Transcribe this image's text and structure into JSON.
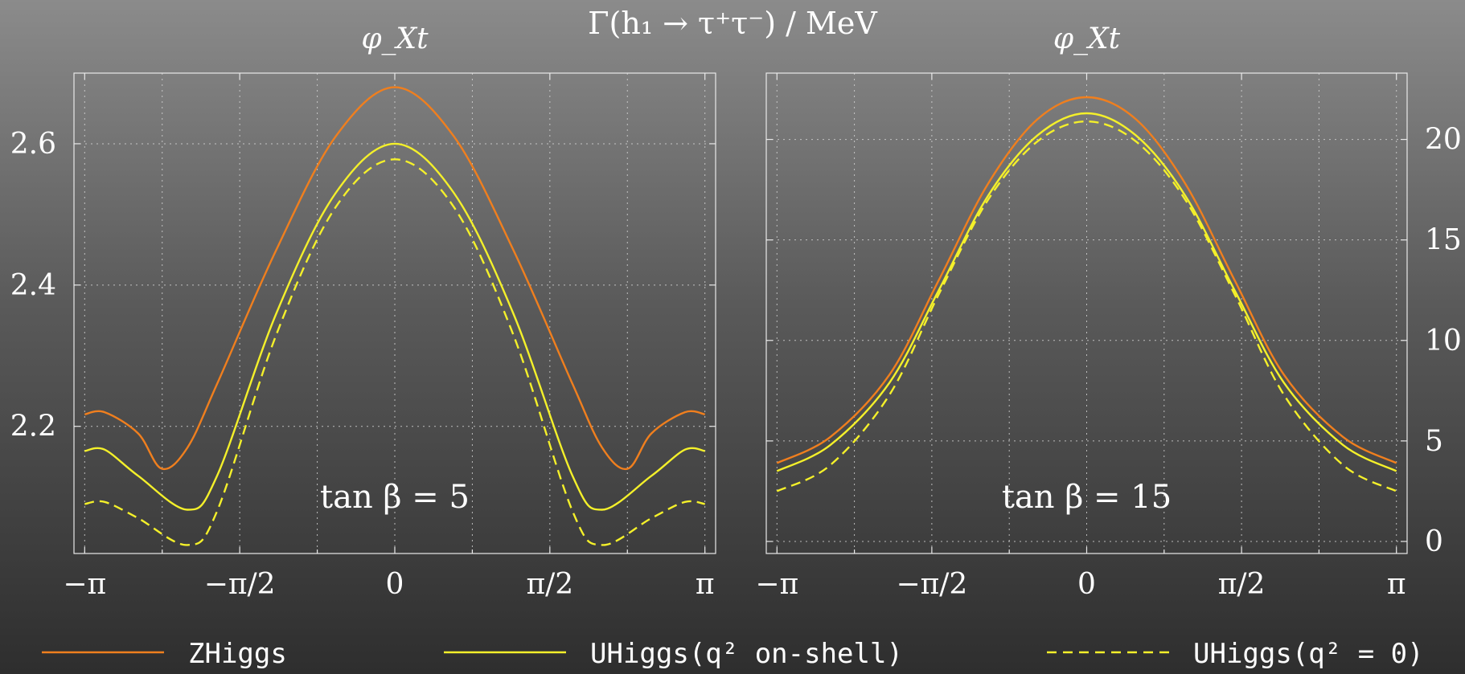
{
  "title": "Γ(h₁ → τ⁺τ⁻) / MeV",
  "legend": [
    {
      "label": "ZHiggs",
      "color": "#f07f1e",
      "dash": false
    },
    {
      "label": "UHiggs(q² on-shell)",
      "color": "#f4f02a",
      "dash": false
    },
    {
      "label": "UHiggs(q² = 0)",
      "color": "#f4f02a",
      "dash": true
    }
  ],
  "chart_data": [
    {
      "type": "line",
      "title": "φ_Xt",
      "annotation": "tan β = 5",
      "xlabel": "φ_Xt",
      "ylabel": "",
      "xlim": [
        -3.25,
        3.25
      ],
      "ylim": [
        2.02,
        2.7
      ],
      "x_ticks": [
        -3.14159,
        -1.5708,
        0,
        1.5708,
        3.14159
      ],
      "x_tick_labels": [
        "−π",
        "−π/2",
        "0",
        "π/2",
        "π"
      ],
      "x_minor_ticks": [
        -2.35619,
        -0.7854,
        0.7854,
        2.35619
      ],
      "y_ticks": [
        2.2,
        2.4,
        2.6
      ],
      "y_tick_labels": [
        "2.2",
        "2.4",
        "2.6"
      ],
      "y_axis_side": "left",
      "grid": true,
      "series": [
        {
          "name": "ZHiggs",
          "color": "#f07f1e",
          "dash": false,
          "points": [
            [
              -3.14159,
              2.217
            ],
            [
              -2.94,
              2.22
            ],
            [
              -2.6,
              2.19
            ],
            [
              -2.36,
              2.14
            ],
            [
              -2.1,
              2.17
            ],
            [
              -1.8,
              2.26
            ],
            [
              -1.2,
              2.45
            ],
            [
              -0.6,
              2.61
            ],
            [
              0,
              2.68
            ],
            [
              0.6,
              2.61
            ],
            [
              1.2,
              2.45
            ],
            [
              1.8,
              2.26
            ],
            [
              2.1,
              2.17
            ],
            [
              2.36,
              2.14
            ],
            [
              2.6,
              2.19
            ],
            [
              2.94,
              2.22
            ],
            [
              3.14159,
              2.217
            ]
          ]
        },
        {
          "name": "UHiggs(q² on-shell)",
          "color": "#f4f02a",
          "dash": false,
          "points": [
            [
              -3.14159,
              2.165
            ],
            [
              -2.94,
              2.167
            ],
            [
              -2.6,
              2.13
            ],
            [
              -2.1,
              2.082
            ],
            [
              -1.8,
              2.13
            ],
            [
              -1.2,
              2.36
            ],
            [
              -0.6,
              2.53
            ],
            [
              0,
              2.6
            ],
            [
              0.6,
              2.53
            ],
            [
              1.2,
              2.36
            ],
            [
              1.8,
              2.13
            ],
            [
              2.1,
              2.082
            ],
            [
              2.6,
              2.13
            ],
            [
              2.94,
              2.167
            ],
            [
              3.14159,
              2.165
            ]
          ]
        },
        {
          "name": "UHiggs(q² = 0)",
          "color": "#f4f02a",
          "dash": true,
          "points": [
            [
              -3.14159,
              2.09
            ],
            [
              -2.94,
              2.093
            ],
            [
              -2.6,
              2.07
            ],
            [
              -2.1,
              2.032
            ],
            [
              -1.8,
              2.08
            ],
            [
              -1.2,
              2.33
            ],
            [
              -0.6,
              2.51
            ],
            [
              0,
              2.578
            ],
            [
              0.6,
              2.51
            ],
            [
              1.2,
              2.33
            ],
            [
              1.8,
              2.08
            ],
            [
              2.1,
              2.032
            ],
            [
              2.6,
              2.07
            ],
            [
              2.94,
              2.093
            ],
            [
              3.14159,
              2.09
            ]
          ]
        }
      ]
    },
    {
      "type": "line",
      "title": "φ_Xt",
      "annotation": "tan β = 15",
      "xlabel": "φ_Xt",
      "ylabel": "",
      "xlim": [
        -3.25,
        3.25
      ],
      "ylim": [
        -0.6,
        23.3
      ],
      "x_ticks": [
        -3.14159,
        -1.5708,
        0,
        1.5708,
        3.14159
      ],
      "x_tick_labels": [
        "−π",
        "−π/2",
        "0",
        "π/2",
        "π"
      ],
      "x_minor_ticks": [
        -2.35619,
        -0.7854,
        0.7854,
        2.35619
      ],
      "y_ticks": [
        0,
        5,
        10,
        15,
        20
      ],
      "y_tick_labels": [
        "0",
        "5",
        "10",
        "15",
        "20"
      ],
      "y_axis_side": "right",
      "grid": true,
      "series": [
        {
          "name": "ZHiggs",
          "color": "#f07f1e",
          "dash": false,
          "points": [
            [
              -3.14159,
              3.9
            ],
            [
              -2.6,
              5.2
            ],
            [
              -2.0,
              8.3
            ],
            [
              -1.5,
              13.0
            ],
            [
              -1.0,
              17.8
            ],
            [
              -0.5,
              21.0
            ],
            [
              0,
              22.1
            ],
            [
              0.5,
              21.0
            ],
            [
              1.0,
              17.8
            ],
            [
              1.5,
              13.0
            ],
            [
              2.0,
              8.3
            ],
            [
              2.6,
              5.2
            ],
            [
              3.14159,
              3.9
            ]
          ]
        },
        {
          "name": "UHiggs(q² on-shell)",
          "color": "#f4f02a",
          "dash": false,
          "points": [
            [
              -3.14159,
              3.5
            ],
            [
              -2.6,
              4.8
            ],
            [
              -2.0,
              7.9
            ],
            [
              -1.5,
              12.5
            ],
            [
              -1.0,
              17.2
            ],
            [
              -0.5,
              20.2
            ],
            [
              0,
              21.3
            ],
            [
              0.5,
              20.2
            ],
            [
              1.0,
              17.2
            ],
            [
              1.5,
              12.5
            ],
            [
              2.0,
              7.9
            ],
            [
              2.6,
              4.8
            ],
            [
              3.14159,
              3.5
            ]
          ]
        },
        {
          "name": "UHiggs(q² = 0)",
          "color": "#f4f02a",
          "dash": true,
          "points": [
            [
              -3.14159,
              2.5
            ],
            [
              -2.6,
              3.8
            ],
            [
              -2.0,
              7.3
            ],
            [
              -1.5,
              12.3
            ],
            [
              -1.0,
              17.0
            ],
            [
              -0.5,
              19.9
            ],
            [
              0,
              20.9
            ],
            [
              0.5,
              19.9
            ],
            [
              1.0,
              17.0
            ],
            [
              1.5,
              12.3
            ],
            [
              2.0,
              7.3
            ],
            [
              2.6,
              3.8
            ],
            [
              3.14159,
              2.5
            ]
          ]
        }
      ]
    }
  ]
}
